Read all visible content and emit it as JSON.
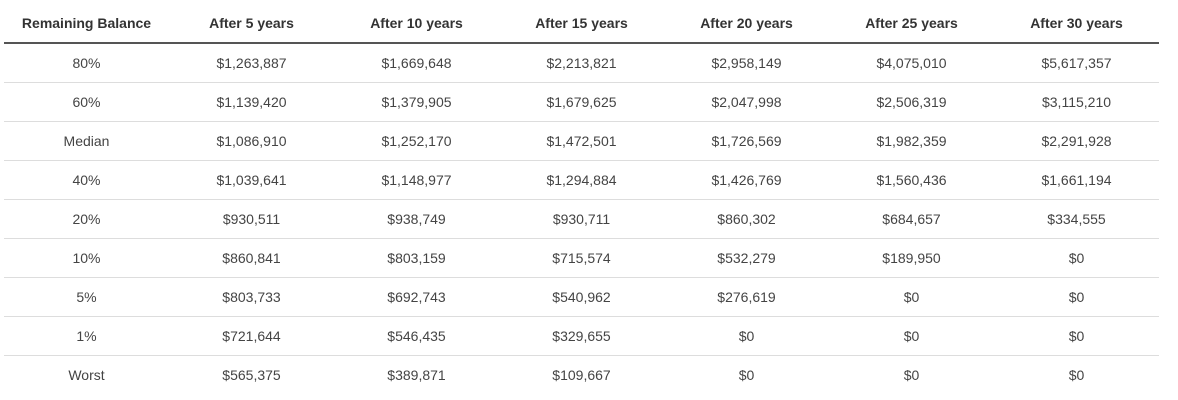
{
  "table": {
    "headers": [
      "Remaining Balance",
      "After 5 years",
      "After 10 years",
      "After 15 years",
      "After 20 years",
      "After 25 years",
      "After 30 years"
    ],
    "rows": [
      [
        "80%",
        "$1,263,887",
        "$1,669,648",
        "$2,213,821",
        "$2,958,149",
        "$4,075,010",
        "$5,617,357"
      ],
      [
        "60%",
        "$1,139,420",
        "$1,379,905",
        "$1,679,625",
        "$2,047,998",
        "$2,506,319",
        "$3,115,210"
      ],
      [
        "Median",
        "$1,086,910",
        "$1,252,170",
        "$1,472,501",
        "$1,726,569",
        "$1,982,359",
        "$2,291,928"
      ],
      [
        "40%",
        "$1,039,641",
        "$1,148,977",
        "$1,294,884",
        "$1,426,769",
        "$1,560,436",
        "$1,661,194"
      ],
      [
        "20%",
        "$930,511",
        "$938,749",
        "$930,711",
        "$860,302",
        "$684,657",
        "$334,555"
      ],
      [
        "10%",
        "$860,841",
        "$803,159",
        "$715,574",
        "$532,279",
        "$189,950",
        "$0"
      ],
      [
        "5%",
        "$803,733",
        "$692,743",
        "$540,962",
        "$276,619",
        "$0",
        "$0"
      ],
      [
        "1%",
        "$721,644",
        "$546,435",
        "$329,655",
        "$0",
        "$0",
        "$0"
      ],
      [
        "Worst",
        "$565,375",
        "$389,871",
        "$109,667",
        "$0",
        "$0",
        "$0"
      ]
    ]
  }
}
